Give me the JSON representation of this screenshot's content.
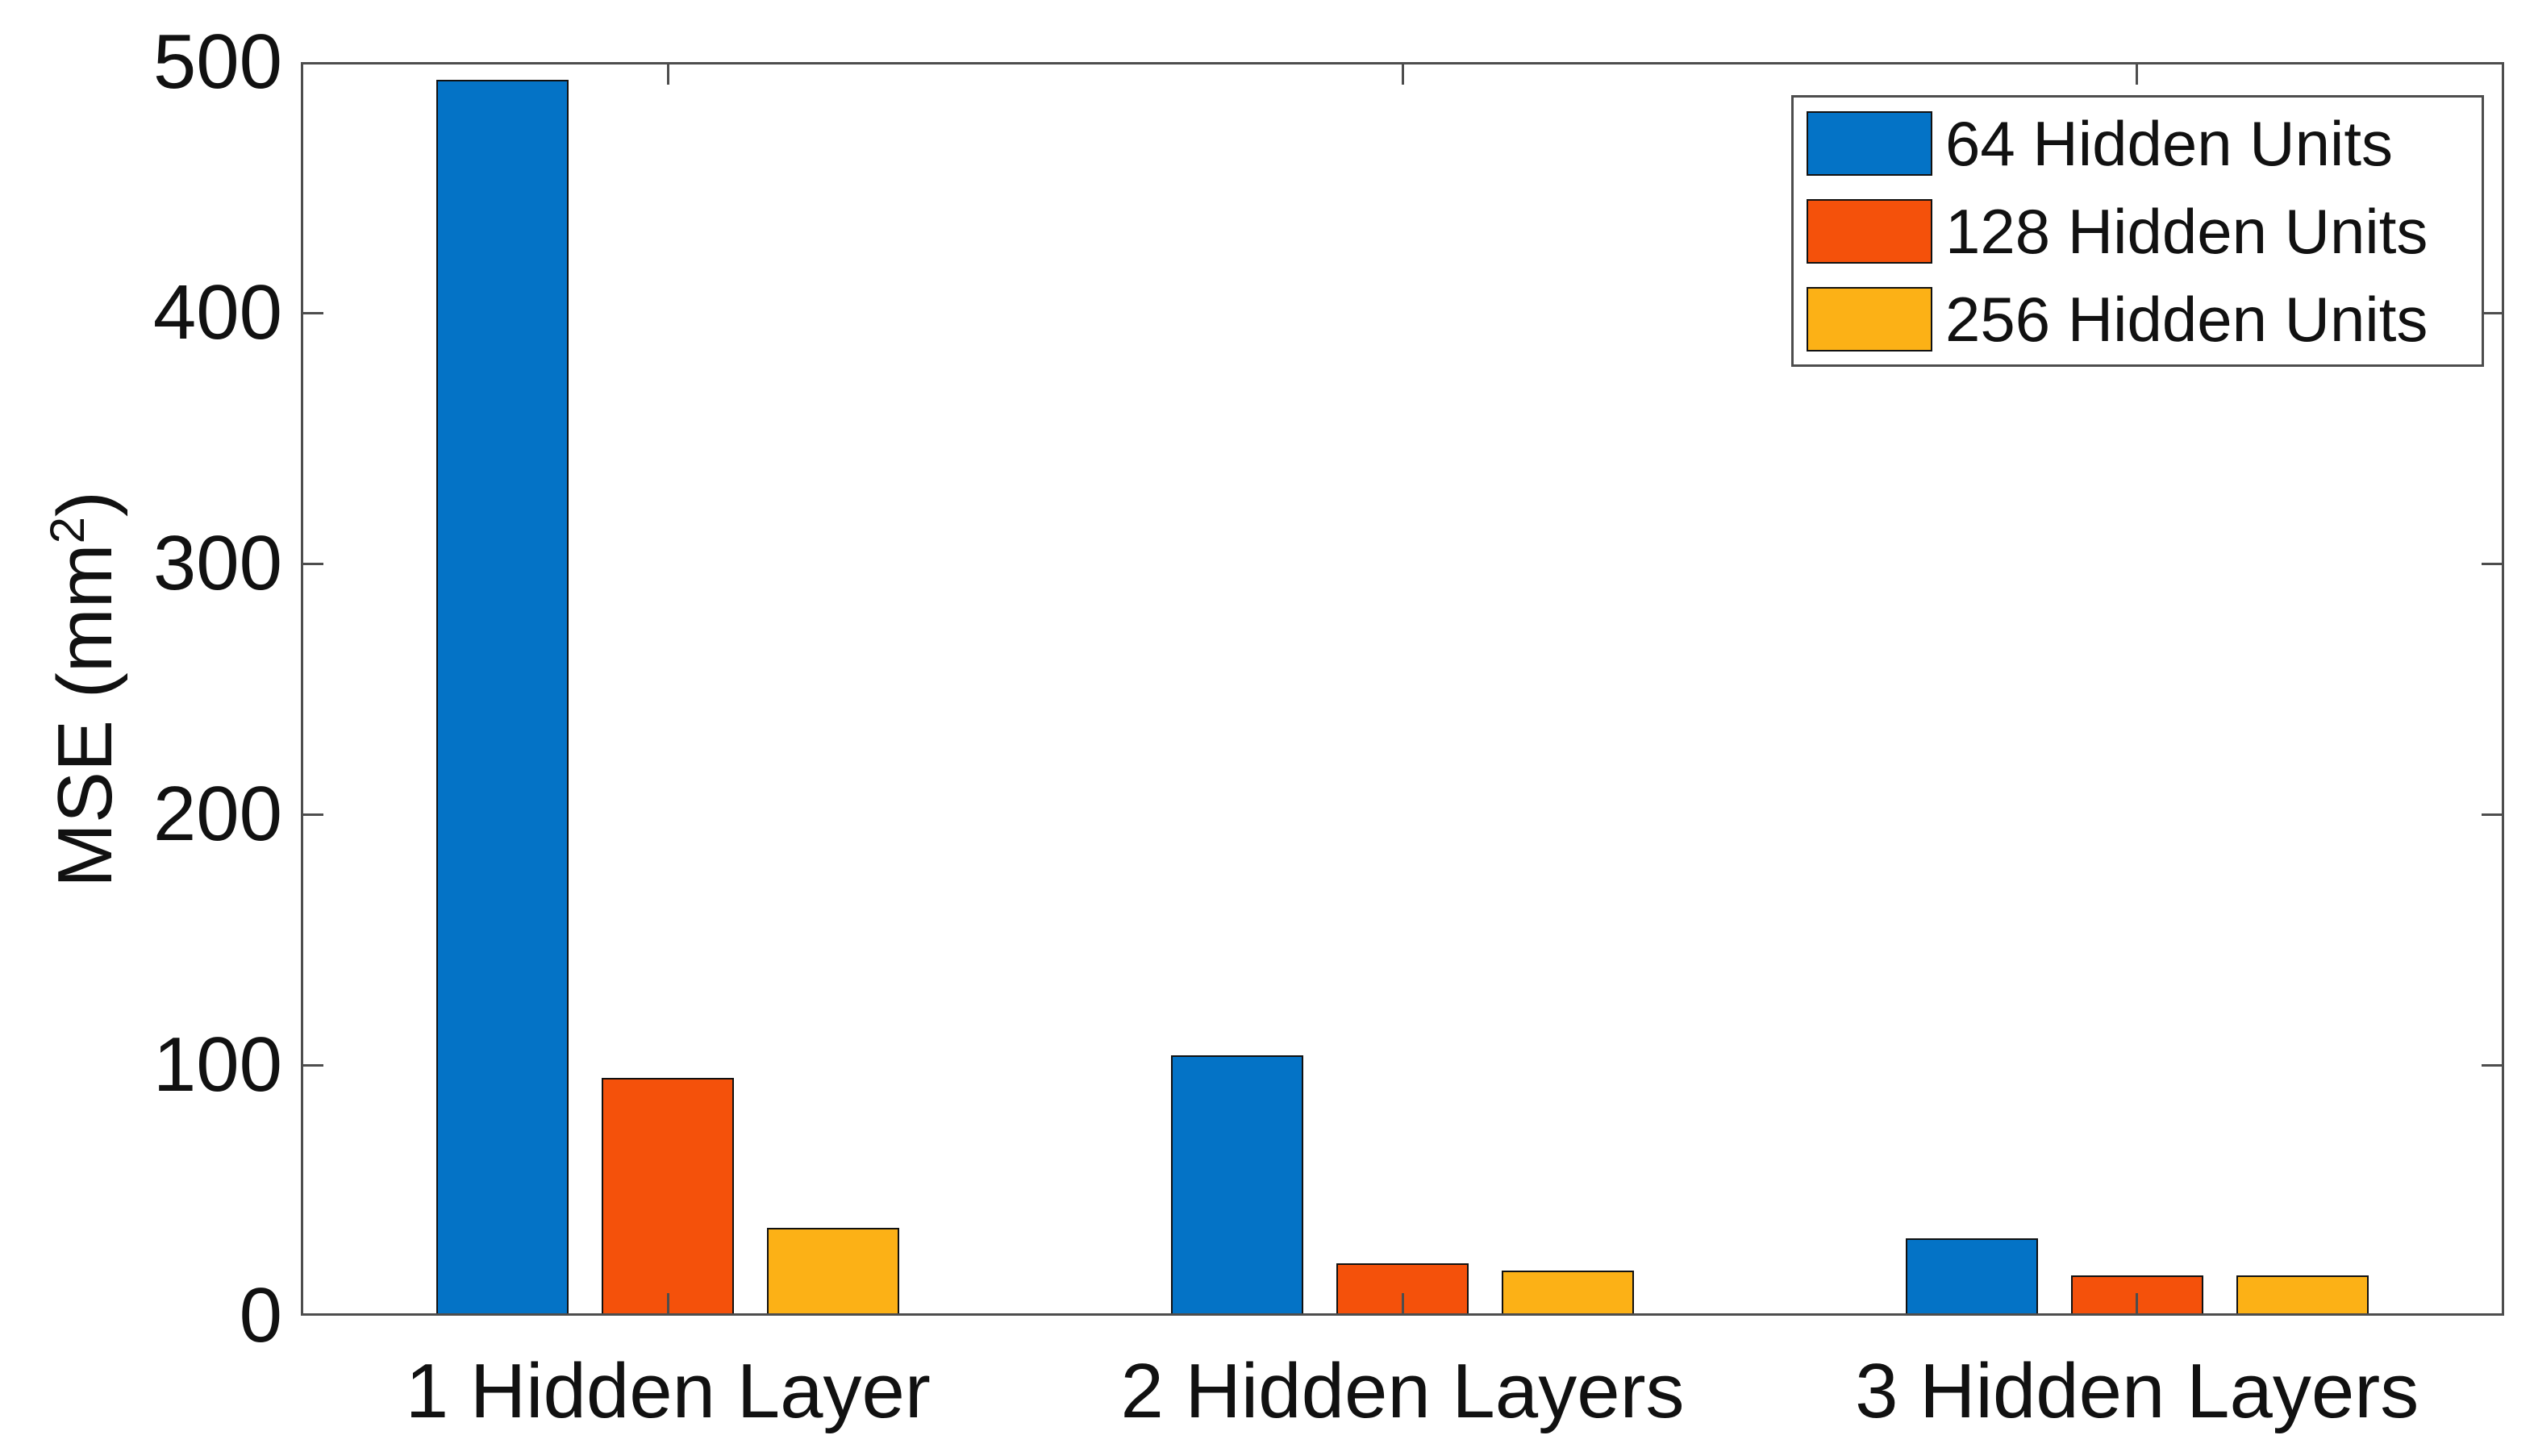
{
  "figure": {
    "ylabel": {
      "prefix": "MSE (mm",
      "sup": "2",
      "suffix": ")"
    }
  },
  "colors": {
    "axis": "#4d4d4d",
    "bar_edge": "#111111",
    "text": "#111111",
    "background": "#ffffff"
  },
  "chart_data": {
    "type": "bar",
    "title": "",
    "xlabel": "",
    "ylabel": "MSE (mm^2)",
    "categories": [
      "1 Hidden Layer",
      "2 Hidden Layers",
      "3 Hidden Layers"
    ],
    "series": [
      {
        "name": "64 Hidden Units",
        "color": "#0473c6",
        "values": [
          493,
          104,
          31
        ]
      },
      {
        "name": "128 Hidden Units",
        "color": "#f4510b",
        "values": [
          95,
          21,
          16
        ]
      },
      {
        "name": "256 Hidden Units",
        "color": "#fcb116",
        "values": [
          35,
          18,
          16
        ]
      }
    ],
    "ylim": [
      0,
      500
    ],
    "yticks": [
      0,
      100,
      200,
      300,
      400,
      500
    ],
    "grid": false,
    "legend_position": "top-right",
    "bar_orientation": "vertical"
  }
}
